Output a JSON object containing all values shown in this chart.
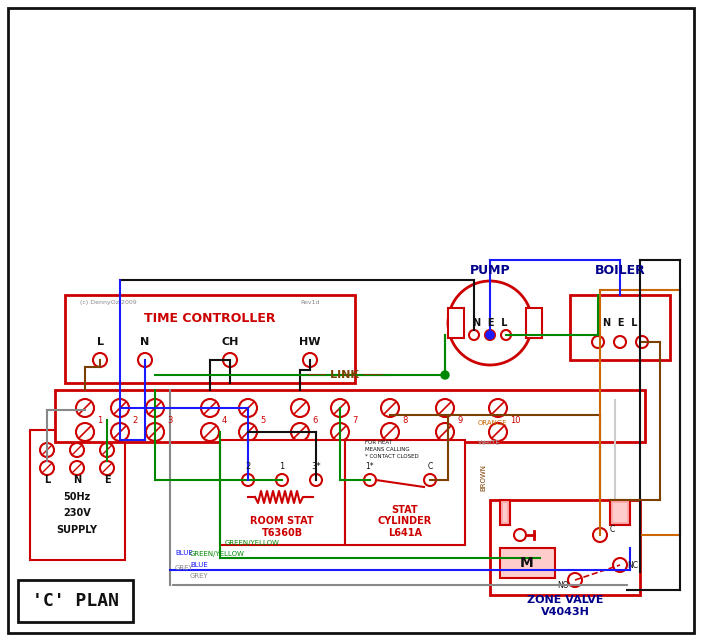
{
  "title": "'C' PLAN",
  "bg_color": "#ffffff",
  "border_color": "#222222",
  "red": "#cc0000",
  "blue": "#1a1aff",
  "green": "#008800",
  "grey": "#888888",
  "brown": "#7b3f00",
  "orange": "#cc6600",
  "black": "#111111",
  "dark_blue": "#00008b",
  "terminal_labels": [
    "1",
    "2",
    "3",
    "4",
    "5",
    "6",
    "7",
    "8",
    "9",
    "10"
  ],
  "supply_text": [
    "SUPPLY",
    "230V",
    "50Hz"
  ],
  "zone_valve_title": "V4043H\nZONE VALVE",
  "room_stat_title": "T6360B\nROOM STAT",
  "cyl_stat_title": "L641A\nCYLINDER\nSTAT",
  "time_ctrl_label": "TIME CONTROLLER",
  "pump_label": "PUMP",
  "boiler_label": "BOILER"
}
